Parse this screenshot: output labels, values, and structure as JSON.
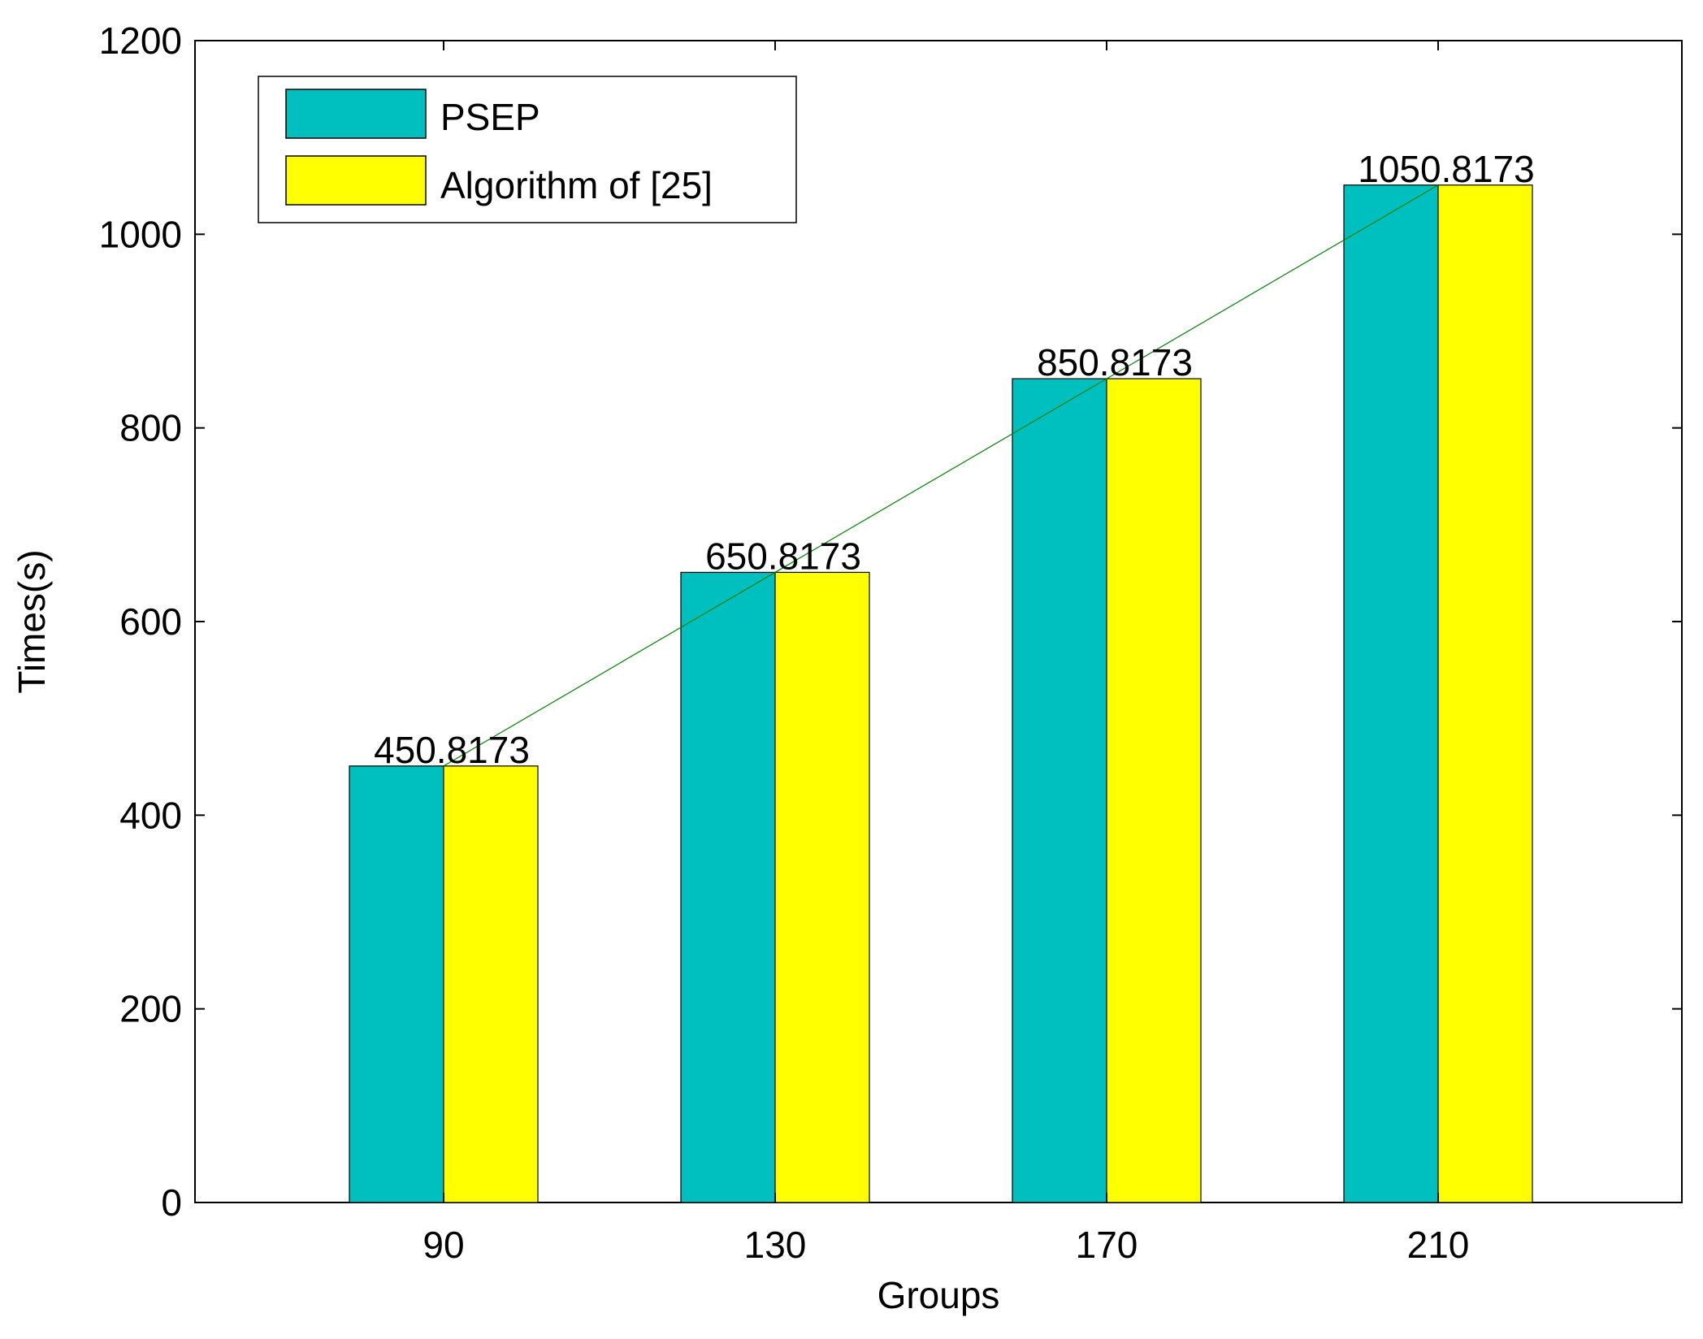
{
  "chart_data": {
    "type": "bar",
    "title": "",
    "xlabel": "Groups",
    "ylabel": "Times(s)",
    "categories": [
      "90",
      "130",
      "170",
      "210"
    ],
    "series": [
      {
        "name": "PSEP",
        "values": [
          450.8173,
          650.8173,
          850.8173,
          1050.8173
        ],
        "color": "#00BFBF"
      },
      {
        "name": "Algorithm of [25]",
        "values": [
          450.8173,
          650.8173,
          850.8173,
          1050.8173
        ],
        "color": "#FFFF00"
      }
    ],
    "data_labels": [
      "450.8173",
      "650.8173",
      "850.8173",
      "1050.8173"
    ],
    "yticks": [
      0,
      200,
      400,
      600,
      800,
      1000,
      1200
    ],
    "ylim": [
      0,
      1200
    ],
    "trend_line": {
      "values": [
        450.8173,
        650.8173,
        850.8173,
        1050.8173
      ],
      "color": "#008000"
    },
    "legend_position": "top-left",
    "grid": false
  }
}
